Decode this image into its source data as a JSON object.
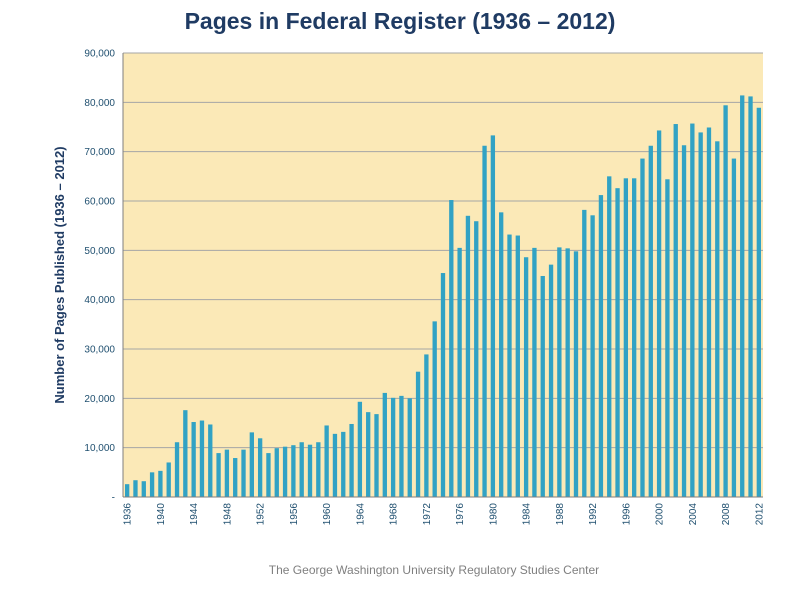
{
  "chart_data": {
    "type": "bar",
    "title": "Pages in Federal Register (1936 – 2012)",
    "xlabel": "",
    "ylabel": "Number of Pages Published (1936 – 2012)",
    "ylim": [
      0,
      90000
    ],
    "y_ticks": [
      "-",
      "10,000",
      "20,000",
      "30,000",
      "40,000",
      "50,000",
      "60,000",
      "70,000",
      "80,000",
      "90,000"
    ],
    "x_ticks": [
      "1936",
      "1940",
      "1944",
      "1948",
      "1952",
      "1956",
      "1960",
      "1964",
      "1968",
      "1972",
      "1976",
      "1980",
      "1984",
      "1988",
      "1992",
      "1996",
      "2000",
      "2004",
      "2008",
      "2012"
    ],
    "grid": true,
    "legend": "none",
    "bar_color": "#31a2c4",
    "plot_background": "#fbe9b7",
    "categories": [
      "1936",
      "1937",
      "1938",
      "1939",
      "1940",
      "1941",
      "1942",
      "1943",
      "1944",
      "1945",
      "1946",
      "1947",
      "1948",
      "1949",
      "1950",
      "1951",
      "1952",
      "1953",
      "1954",
      "1955",
      "1956",
      "1957",
      "1958",
      "1959",
      "1960",
      "1961",
      "1962",
      "1963",
      "1964",
      "1965",
      "1966",
      "1967",
      "1968",
      "1969",
      "1970",
      "1971",
      "1972",
      "1973",
      "1974",
      "1975",
      "1976",
      "1977",
      "1978",
      "1979",
      "1980",
      "1981",
      "1982",
      "1983",
      "1984",
      "1985",
      "1986",
      "1987",
      "1988",
      "1989",
      "1990",
      "1991",
      "1992",
      "1993",
      "1994",
      "1995",
      "1996",
      "1997",
      "1998",
      "1999",
      "2000",
      "2001",
      "2002",
      "2003",
      "2004",
      "2005",
      "2006",
      "2007",
      "2008",
      "2009",
      "2010",
      "2011",
      "2012"
    ],
    "values": [
      2600,
      3400,
      3200,
      5000,
      5300,
      7000,
      11100,
      17600,
      15200,
      15500,
      14700,
      8900,
      9600,
      7900,
      9600,
      13100,
      11900,
      8900,
      9900,
      10200,
      10500,
      11100,
      10600,
      11100,
      14500,
      12800,
      13200,
      14800,
      19300,
      17200,
      16800,
      21100,
      20100,
      20500,
      20000,
      25400,
      28900,
      35600,
      45400,
      60200,
      50500,
      57000,
      55900,
      71200,
      73300,
      57700,
      53200,
      53000,
      48600,
      50500,
      44800,
      47100,
      50600,
      50400,
      49800,
      58200,
      57100,
      61200,
      65000,
      62600,
      64600,
      64600,
      68600,
      71200,
      74300,
      64400,
      75600,
      71300,
      75700,
      73900,
      74900,
      72100,
      79400,
      68600,
      81400,
      81200,
      78900
    ]
  },
  "footer": {
    "text": "The George Washington University Regulatory Studies Center"
  }
}
